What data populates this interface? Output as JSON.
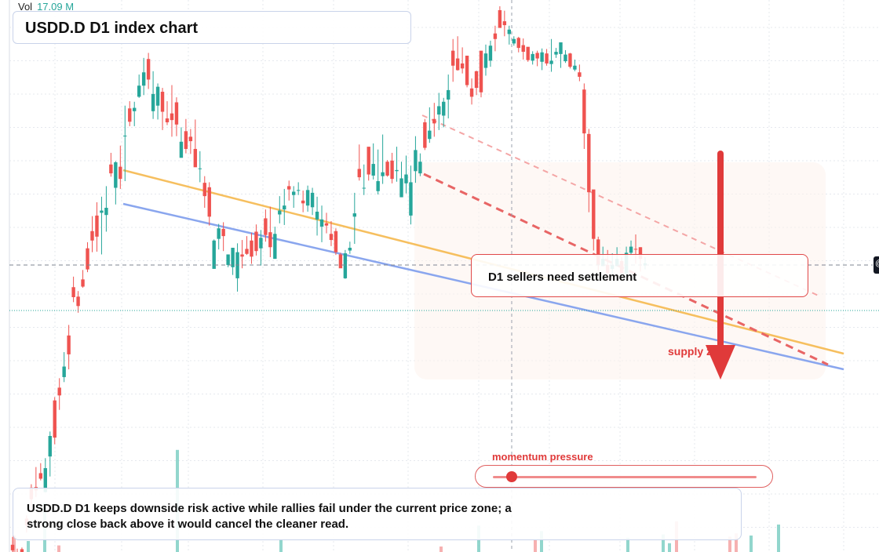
{
  "header": {
    "vol_label": "Vol",
    "vol_value": "17.09 M"
  },
  "title": "USDD.D D1 index chart",
  "callout": "D1 sellers need settlement",
  "zone_label": "supply zone",
  "momentum": {
    "label": "momentum pressure",
    "level": 0.07
  },
  "summary": "USDD.D D1 keeps downside risk active while rallies fail under the current price zone; a strong close back above it would cancel the cleaner read.",
  "edge_marker": "@",
  "colors": {
    "up": "#26a69a",
    "down": "#ef5350",
    "orange_line": "#f6b94e",
    "blue_line": "#8aa6ee",
    "pink_dashed": "#f4a6a6",
    "red_dashed": "#e86565",
    "arrow": "#e03a3a",
    "zone_fill": "#fdf3ec"
  },
  "chart_data": {
    "type": "candlestick",
    "symbol": "USDD.D",
    "timeframe": "D1",
    "price_range": [
      0,
      1000
    ],
    "candles": [
      [
        30,
        20,
        44,
        16
      ],
      [
        13,
        7,
        23,
        1
      ],
      [
        22,
        9,
        25,
        3
      ],
      [
        77,
        65,
        83,
        52
      ],
      [
        133,
        112,
        139,
        89
      ],
      [
        134,
        128,
        170,
        116
      ],
      [
        159,
        149,
        177,
        146
      ],
      [
        125,
        168,
        186,
        124
      ],
      [
        189,
        226,
        234,
        153
      ],
      [
        290,
        223,
        296,
        211
      ],
      [
        313,
        299,
        330,
        273
      ],
      [
        332,
        351,
        377,
        323
      ],
      [
        407,
        373,
        426,
        346
      ],
      [
        494,
        476,
        513,
        467
      ],
      [
        477,
        460,
        487,
        448
      ],
      [
        508,
        495,
        525,
        493
      ],
      [
        564,
        526,
        575,
        521
      ],
      [
        595,
        578,
        622,
        557
      ],
      [
        623,
        585,
        647,
        558
      ],
      [
        628,
        632,
        657,
        553
      ],
      [
        624,
        637,
        676,
        594
      ],
      [
        715,
        699,
        736,
        693
      ],
      [
        673,
        719,
        721,
        643
      ],
      [
        711,
        689,
        749,
        671
      ],
      [
        766,
        767,
        821,
        685
      ],
      [
        816,
        792,
        829,
        784
      ],
      [
        811,
        817,
        828,
        784
      ],
      [
        837,
        857,
        877,
        835
      ],
      [
        857,
        881,
        907,
        840
      ],
      [
        905,
        868,
        916,
        851
      ],
      [
        811,
        842,
        883,
        797
      ],
      [
        821,
        855,
        861,
        796
      ],
      [
        846,
        810,
        853,
        777
      ],
      [
        798,
        791,
        829,
        786
      ],
      [
        807,
        795,
        858,
        765
      ],
      [
        827,
        787,
        836,
        766
      ],
      [
        727,
        756,
        782,
        741
      ],
      [
        775,
        743,
        797,
        735
      ],
      [
        765,
        757,
        779,
        734
      ],
      [
        743,
        710,
        796,
        716
      ],
      [
        707,
        708,
        739,
        683
      ],
      [
        682,
        658,
        694,
        637
      ],
      [
        674,
        621,
        683,
        605
      ],
      [
        527,
        578,
        580,
        533
      ],
      [
        581,
        600,
        608,
        562
      ],
      [
        599,
        586,
        611,
        559
      ],
      [
        534,
        553,
        549,
        530
      ],
      [
        530,
        565,
        557,
        516
      ],
      [
        510,
        557,
        573,
        486
      ],
      [
        553,
        549,
        579,
        528
      ],
      [
        563,
        554,
        586,
        552
      ],
      [
        578,
        549,
        592,
        536
      ],
      [
        594,
        559,
        607,
        551
      ],
      [
        564,
        583,
        597,
        533
      ],
      [
        618,
        588,
        634,
        576
      ],
      [
        593,
        566,
        639,
        548
      ],
      [
        545,
        590,
        603,
        558
      ],
      [
        625,
        632,
        658,
        609
      ],
      [
        634,
        641,
        671,
        606
      ],
      [
        676,
        670,
        686,
        650
      ],
      [
        660,
        666,
        676,
        637
      ],
      [
        669,
        669,
        683,
        660
      ],
      [
        650,
        645,
        668,
        629
      ],
      [
        641,
        669,
        677,
        630
      ],
      [
        638,
        664,
        673,
        624
      ],
      [
        616,
        630,
        657,
        587
      ],
      [
        603,
        616,
        641,
        575
      ],
      [
        609,
        605,
        628,
        591
      ],
      [
        590,
        579,
        613,
        568
      ],
      [
        595,
        557,
        600,
        552
      ],
      [
        553,
        528,
        556,
        529
      ],
      [
        510,
        555,
        561,
        509
      ],
      [
        560,
        565,
        576,
        554
      ],
      [
        621,
        627,
        664,
        572
      ],
      [
        707,
        692,
        751,
        686
      ],
      [
        672,
        673,
        715,
        660
      ],
      [
        747,
        697,
        745,
        686
      ],
      [
        695,
        716,
        753,
        688
      ],
      [
        667,
        685,
        742,
        661
      ],
      [
        694,
        701,
        769,
        680
      ],
      [
        720,
        695,
        723,
        693
      ],
      [
        722,
        689,
        736,
        681
      ],
      [
        703,
        705,
        747,
        684
      ],
      [
        656,
        690,
        720,
        661
      ],
      [
        681,
        697,
        731,
        663
      ],
      [
        623,
        683,
        713,
        607
      ],
      [
        703,
        741,
        766,
        682
      ],
      [
        699,
        720,
        735,
        694
      ],
      [
        791,
        745,
        797,
        741
      ],
      [
        761,
        776,
        818,
        754
      ],
      [
        797,
        789,
        826,
        765
      ],
      [
        805,
        820,
        844,
        777
      ],
      [
        803,
        828,
        835,
        782
      ],
      [
        832,
        849,
        877,
        798
      ],
      [
        920,
        893,
        941,
        864
      ],
      [
        906,
        885,
        946,
        884
      ],
      [
        897,
        888,
        926,
        879
      ],
      [
        911,
        858,
        911,
        854
      ],
      [
        852,
        837,
        870,
        823
      ],
      [
        883,
        853,
        884,
        840
      ],
      [
        920,
        845,
        913,
        836
      ],
      [
        889,
        915,
        931,
        875
      ],
      [
        902,
        929,
        938,
        891
      ],
      [
        951,
        941,
        965,
        919
      ],
      [
        993,
        961,
        1000,
        974
      ],
      [
        973,
        966,
        992,
        946
      ],
      [
        950,
        958,
        965,
        931
      ],
      [
        933,
        941,
        946,
        929
      ],
      [
        943,
        925,
        945,
        917
      ],
      [
        930,
        918,
        942,
        904
      ],
      [
        927,
        903,
        916,
        900
      ],
      [
        902,
        914,
        919,
        895
      ],
      [
        916,
        906,
        920,
        892
      ],
      [
        900,
        917,
        924,
        885
      ],
      [
        915,
        897,
        923,
        893
      ],
      [
        896,
        902,
        941,
        882
      ],
      [
        913,
        918,
        925,
        907
      ],
      [
        914,
        935,
        931,
        889
      ],
      [
        901,
        913,
        921,
        898
      ],
      [
        915,
        891,
        916,
        888
      ],
      [
        886,
        893,
        904,
        883
      ],
      [
        881,
        873,
        895,
        865
      ],
      [
        850,
        771,
        861,
        743
      ],
      [
        770,
        665,
        779,
        629
      ],
      [
        670,
        581,
        666,
        560
      ],
      [
        580,
        534,
        585,
        523
      ],
      [
        532,
        545,
        567,
        540
      ],
      [
        534,
        519,
        561,
        505
      ],
      [
        527,
        534,
        555,
        515
      ],
      [
        532,
        545,
        566,
        532
      ],
      [
        541,
        519,
        548,
        519
      ],
      [
        518,
        556,
        567,
        513
      ],
      [
        556,
        567,
        578,
        552
      ],
      [
        563,
        562,
        589,
        536
      ],
      [
        566,
        545,
        566,
        522
      ],
      [
        533,
        537,
        548,
        526
      ]
    ],
    "volume": [
      [
        0.15,
        0
      ],
      [
        0.1,
        1
      ],
      [
        0.45,
        1
      ],
      [
        0.06,
        0
      ],
      [
        0.93,
        1
      ],
      [
        0.12,
        1
      ],
      [
        0.05,
        0
      ],
      [
        0.24,
        1
      ],
      [
        0.11,
        0
      ],
      [
        0.19,
        1
      ],
      [
        0.13,
        1
      ],
      [
        0.16,
        1
      ],
      [
        0.08,
        1
      ],
      [
        0.28,
        0
      ],
      [
        0.14,
        0
      ],
      [
        0.17,
        0
      ],
      [
        0.15,
        1
      ],
      [
        0.25,
        1
      ]
    ]
  }
}
